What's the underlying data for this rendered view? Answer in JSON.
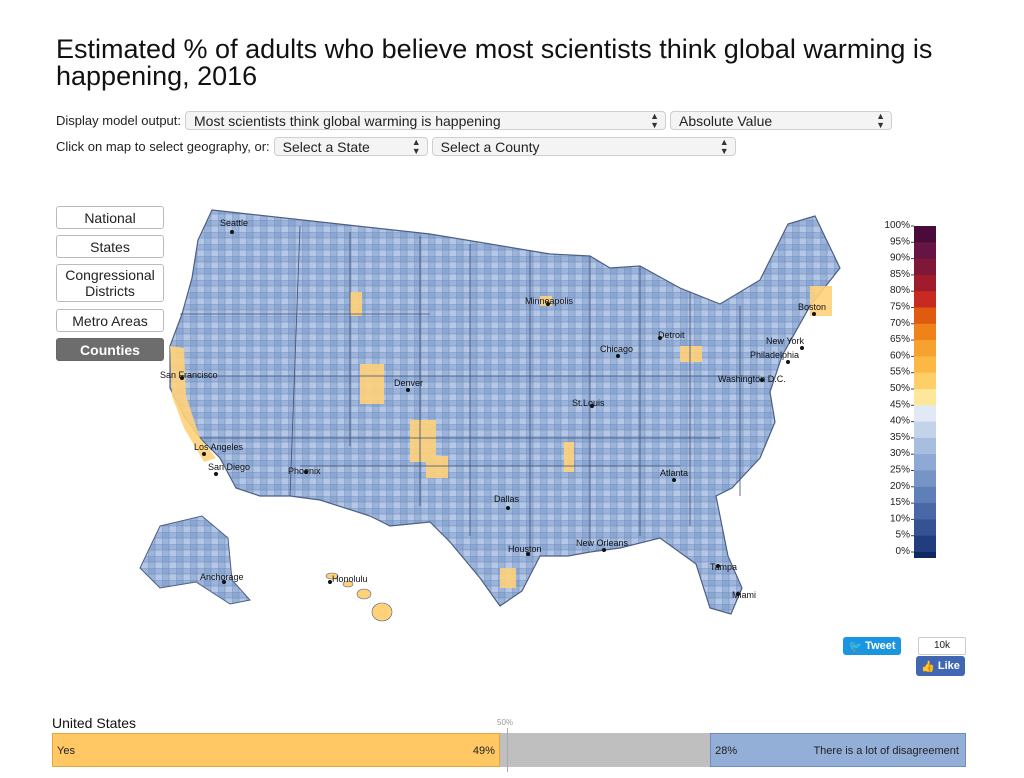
{
  "title": "Estimated % of adults who believe most scientists think global warming is happening, 2016",
  "controls": {
    "display_label": "Display model output:",
    "model_output_selected": "Most scientists think global warming is happening",
    "value_type_selected": "Absolute Value",
    "geo_label": "Click on map to select geography, or:",
    "state_selected": "Select a State",
    "county_selected": "Select a County"
  },
  "geo_buttons": [
    {
      "label": "National",
      "active": false
    },
    {
      "label": "States",
      "active": false
    },
    {
      "label": "Congressional Districts",
      "active": false
    },
    {
      "label": "Metro Areas",
      "active": false
    },
    {
      "label": "Counties",
      "active": true
    }
  ],
  "map": {
    "cities": [
      "Seattle",
      "San Francisco",
      "Los Angeles",
      "San Diego",
      "Phoenix",
      "Denver",
      "Minneapolis",
      "Chicago",
      "Detroit",
      "St.Louis",
      "Dallas",
      "Houston",
      "New Orleans",
      "Atlanta",
      "Tampa",
      "Miami",
      "Washington D.C.",
      "Philadelphia",
      "New York",
      "Boston",
      "Anchorage",
      "Honolulu"
    ]
  },
  "legend": {
    "labels": [
      "100%",
      "95%",
      "90%",
      "85%",
      "80%",
      "75%",
      "70%",
      "65%",
      "60%",
      "55%",
      "50%",
      "45%",
      "40%",
      "35%",
      "30%",
      "25%",
      "20%",
      "15%",
      "10%",
      "5%",
      "0%"
    ],
    "colors": [
      "#4a0a3a",
      "#651444",
      "#7e1738",
      "#a01b2b",
      "#c62a20",
      "#e05a10",
      "#f0821a",
      "#f7a230",
      "#fbb845",
      "#fdcf66",
      "#ffe79a",
      "#e1e9f5",
      "#c3d3ea",
      "#a7bedf",
      "#8ea9d3",
      "#7694c6",
      "#5f7fb8",
      "#4a68a6",
      "#355293",
      "#223d7e",
      "#0f2862"
    ]
  },
  "social": {
    "tweet_label": "Tweet",
    "like_count": "10k",
    "like_label": "Like"
  },
  "summary": {
    "geography": "United States",
    "midpoint_label": "50%",
    "yes_label": "Yes",
    "yes_value": "49%",
    "yes_pct": 49,
    "disagree_value": "28%",
    "disagree_pct": 28,
    "disagree_label": "There is a lot of disagreement"
  }
}
